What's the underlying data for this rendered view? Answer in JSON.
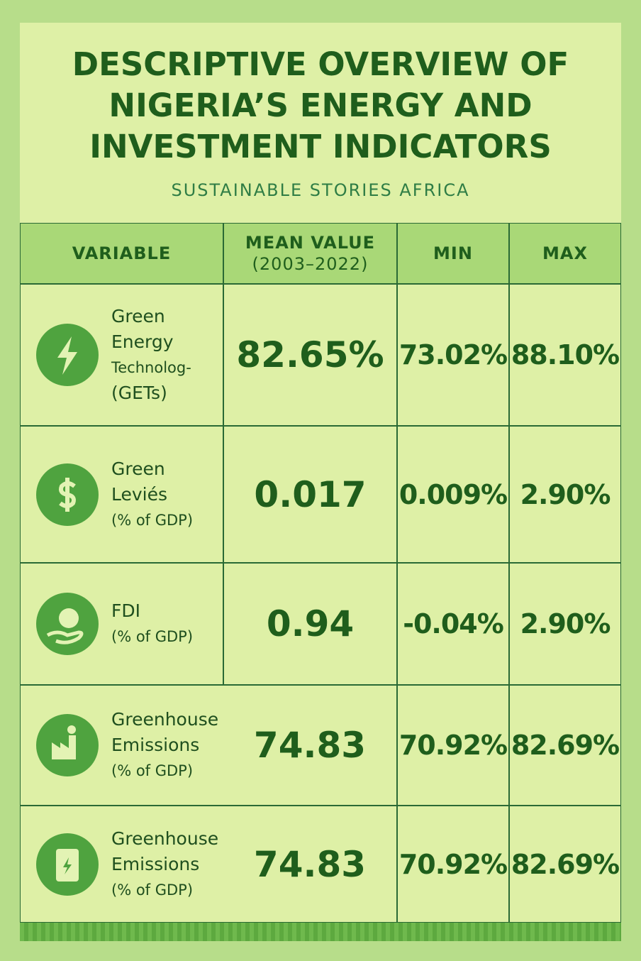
{
  "header": {
    "title": [
      "DESCRIPTIVE OVERVIEW OF",
      "NIGERIA’S ENERGY AND",
      "INVESTMENT INDICATORS"
    ],
    "subtitle": "SUSTAINABLE STORIES AFRICA"
  },
  "table": {
    "columns": [
      [
        "VARIABLE"
      ],
      [
        "MEAN VALUE",
        "(2003–2022)"
      ],
      [
        "MIN"
      ],
      [
        "MAX"
      ]
    ],
    "rows": [
      {
        "variable": [
          "Green",
          "Energy",
          "Technolog-",
          "(GETs)"
        ],
        "mean": "82.65%",
        "min": "73.02%",
        "max": "88.10%"
      },
      {
        "variable": [
          "Green",
          "Leviés",
          "(% of GDP)"
        ],
        "mean": "0.017",
        "min": "0.009%",
        "max": "2.90%"
      },
      {
        "variable": [
          "FDI",
          "(% of GDP)"
        ],
        "mean": "0.94",
        "min": "-0.04%",
        "max": "2.90%"
      },
      {
        "variable": [
          "Greenhouse",
          "Emissions",
          "(% of GDP)"
        ],
        "mean": "74.83",
        "min": "70.92%",
        "max": "82.69%"
      },
      {
        "variable": [
          "Greenhouse",
          "Emissions",
          "(% of GDP)"
        ],
        "mean": "74.83",
        "min": "70.92%",
        "max": "82.69%"
      }
    ]
  }
}
